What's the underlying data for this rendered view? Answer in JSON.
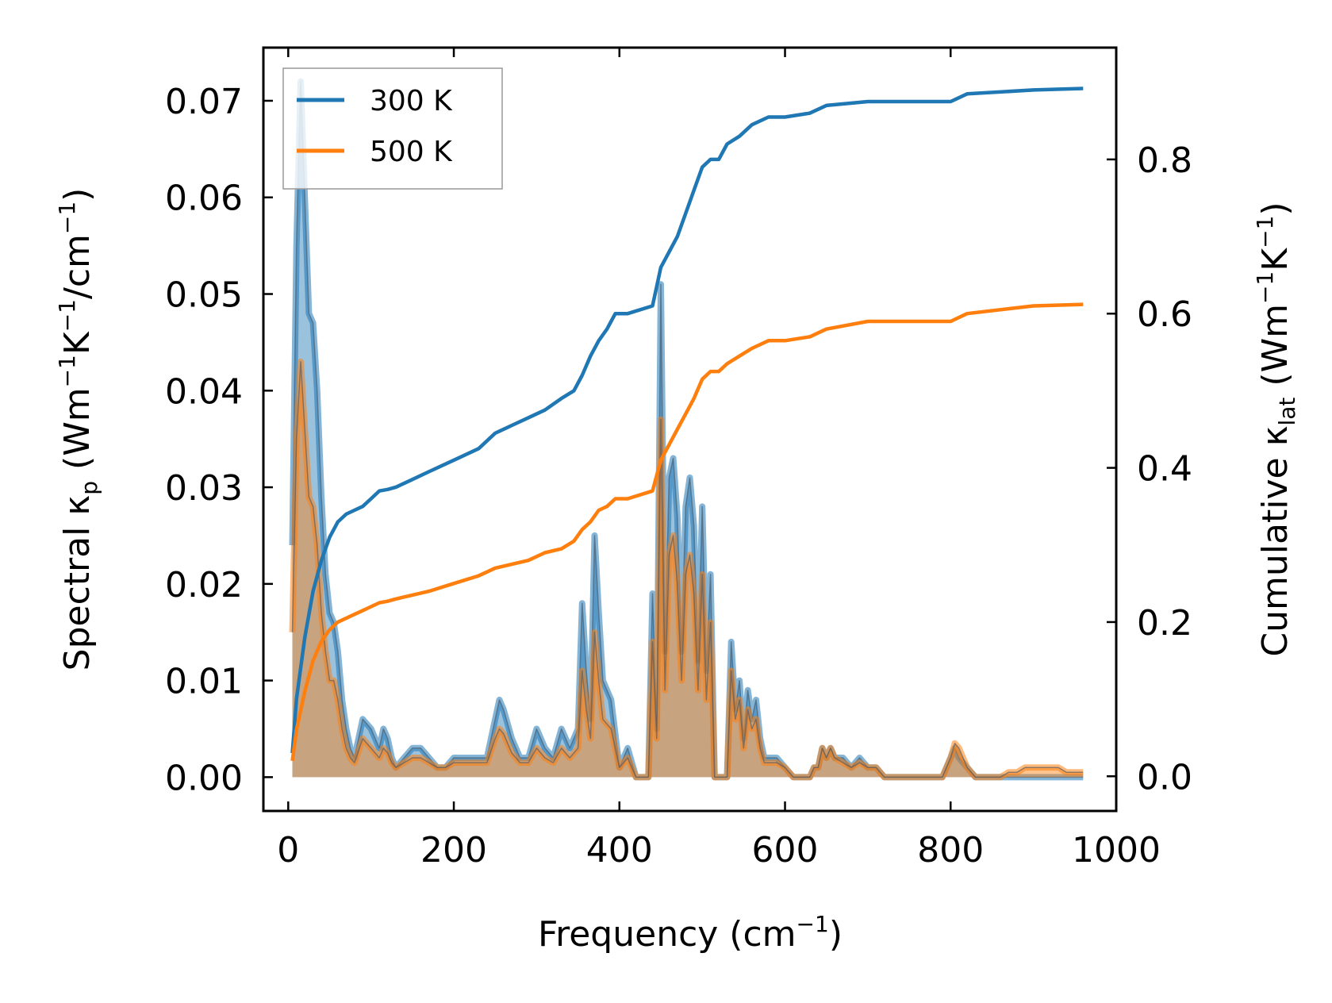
{
  "chart_data": {
    "type": "line",
    "x_label": "Frequency",
    "x_unit": "cm",
    "x_unit_exp": "−1",
    "x_range": [
      -30,
      1000
    ],
    "x_ticks": [
      "0",
      "200",
      "400",
      "600",
      "800",
      "1000"
    ],
    "left_axis": {
      "label": "Spectral",
      "symbol": "κ",
      "sub": "p",
      "unit_parts": [
        "(Wm",
        "−1",
        "K",
        "−1",
        "/cm",
        "−1",
        ")"
      ],
      "range": [
        -0.0035,
        0.0755
      ],
      "ticks": [
        "0.00",
        "0.01",
        "0.02",
        "0.03",
        "0.04",
        "0.05",
        "0.06",
        "0.07"
      ]
    },
    "right_axis": {
      "label": "Cumulative",
      "symbol": "κ",
      "sub": "lat",
      "unit_parts": [
        "(Wm",
        "−1",
        "K",
        "−1",
        ")"
      ],
      "range": [
        -0.045,
        0.945
      ],
      "ticks": [
        "0.0",
        "0.2",
        "0.4",
        "0.6",
        "0.8"
      ]
    },
    "legend": {
      "position": "top-left",
      "entries": [
        "300 K",
        "500 K"
      ]
    },
    "colors": {
      "300 K": "#1f77b4",
      "500 K": "#ff7f0e"
    },
    "series": [
      {
        "name": "300 K",
        "kind": "spectral",
        "x": [
          5,
          10,
          15,
          20,
          25,
          30,
          35,
          40,
          45,
          50,
          55,
          60,
          65,
          70,
          75,
          80,
          90,
          100,
          110,
          115,
          120,
          125,
          130,
          140,
          150,
          160,
          170,
          180,
          190,
          200,
          210,
          220,
          230,
          240,
          250,
          255,
          260,
          270,
          280,
          290,
          300,
          310,
          320,
          330,
          340,
          350,
          355,
          360,
          365,
          370,
          375,
          380,
          390,
          400,
          410,
          420,
          430,
          435,
          440,
          445,
          450,
          455,
          460,
          465,
          470,
          475,
          480,
          485,
          490,
          495,
          500,
          505,
          510,
          515,
          520,
          525,
          530,
          535,
          540,
          545,
          550,
          555,
          560,
          565,
          570,
          575,
          580,
          590,
          600,
          610,
          620,
          630,
          635,
          640,
          645,
          650,
          655,
          660,
          670,
          680,
          690,
          700,
          710,
          720,
          730,
          740,
          750,
          760,
          770,
          780,
          790,
          800,
          805,
          810,
          820,
          830,
          840,
          850,
          860,
          870,
          880,
          890,
          900,
          910,
          920,
          930,
          940,
          950,
          960
        ],
        "y": [
          0.024,
          0.055,
          0.072,
          0.06,
          0.048,
          0.047,
          0.04,
          0.029,
          0.021,
          0.017,
          0.016,
          0.013,
          0.008,
          0.005,
          0.003,
          0.002,
          0.006,
          0.005,
          0.003,
          0.005,
          0.004,
          0.002,
          0.001,
          0.002,
          0.003,
          0.003,
          0.002,
          0.001,
          0.001,
          0.002,
          0.002,
          0.002,
          0.002,
          0.002,
          0.006,
          0.008,
          0.007,
          0.004,
          0.002,
          0.002,
          0.005,
          0.003,
          0.002,
          0.005,
          0.003,
          0.005,
          0.018,
          0.011,
          0.006,
          0.025,
          0.017,
          0.01,
          0.008,
          0.001,
          0.003,
          0.0,
          0.0,
          0.0,
          0.019,
          0.005,
          0.051,
          0.013,
          0.031,
          0.033,
          0.027,
          0.013,
          0.028,
          0.031,
          0.026,
          0.012,
          0.028,
          0.011,
          0.021,
          0.0,
          0.0,
          0.0,
          0.0,
          0.014,
          0.007,
          0.01,
          0.004,
          0.009,
          0.006,
          0.008,
          0.004,
          0.002,
          0.002,
          0.002,
          0.001,
          0.0,
          0.0,
          0.0,
          0.001,
          0.001,
          0.003,
          0.002,
          0.003,
          0.002,
          0.002,
          0.001,
          0.002,
          0.001,
          0.001,
          0.0,
          0.0,
          0.0,
          0.0,
          0.0,
          0.0,
          0.0,
          0.0,
          0.002,
          0.003,
          0.002,
          0.001,
          0.0,
          0.0,
          0.0,
          0.0,
          0.0,
          0.0,
          0.0,
          0.0,
          0.0,
          0.0,
          0.0,
          0.0,
          0.0,
          0.0
        ]
      },
      {
        "name": "500 K",
        "kind": "spectral",
        "x": [
          5,
          10,
          15,
          20,
          25,
          30,
          35,
          40,
          45,
          50,
          55,
          60,
          65,
          70,
          75,
          80,
          90,
          100,
          110,
          115,
          120,
          125,
          130,
          140,
          150,
          160,
          170,
          180,
          190,
          200,
          210,
          220,
          230,
          240,
          250,
          255,
          260,
          270,
          280,
          290,
          300,
          310,
          320,
          330,
          340,
          350,
          355,
          360,
          365,
          370,
          375,
          380,
          390,
          400,
          410,
          420,
          430,
          435,
          440,
          445,
          450,
          455,
          460,
          465,
          470,
          475,
          480,
          485,
          490,
          495,
          500,
          505,
          510,
          515,
          520,
          525,
          530,
          535,
          540,
          545,
          550,
          555,
          560,
          565,
          570,
          575,
          580,
          590,
          600,
          610,
          620,
          630,
          635,
          640,
          645,
          650,
          655,
          660,
          670,
          680,
          690,
          700,
          710,
          720,
          730,
          740,
          750,
          760,
          770,
          780,
          790,
          800,
          805,
          810,
          820,
          830,
          840,
          850,
          860,
          870,
          880,
          890,
          900,
          910,
          920,
          930,
          940,
          950,
          960
        ],
        "y": [
          0.015,
          0.035,
          0.043,
          0.036,
          0.029,
          0.028,
          0.024,
          0.017,
          0.013,
          0.01,
          0.01,
          0.008,
          0.005,
          0.003,
          0.002,
          0.0015,
          0.004,
          0.003,
          0.002,
          0.003,
          0.0025,
          0.0015,
          0.001,
          0.0015,
          0.002,
          0.002,
          0.0015,
          0.001,
          0.001,
          0.0015,
          0.0015,
          0.0015,
          0.0015,
          0.0015,
          0.004,
          0.005,
          0.0045,
          0.0025,
          0.0015,
          0.0015,
          0.003,
          0.002,
          0.0015,
          0.003,
          0.002,
          0.003,
          0.011,
          0.007,
          0.004,
          0.015,
          0.01,
          0.006,
          0.005,
          0.001,
          0.002,
          0.0,
          0.0,
          0.0,
          0.014,
          0.004,
          0.037,
          0.009,
          0.023,
          0.025,
          0.02,
          0.01,
          0.021,
          0.023,
          0.019,
          0.009,
          0.021,
          0.008,
          0.016,
          0.0,
          0.0,
          0.0,
          0.0,
          0.011,
          0.006,
          0.008,
          0.003,
          0.007,
          0.005,
          0.006,
          0.003,
          0.0015,
          0.0015,
          0.0015,
          0.001,
          0.0,
          0.0,
          0.0,
          0.001,
          0.001,
          0.003,
          0.002,
          0.003,
          0.002,
          0.0015,
          0.001,
          0.0015,
          0.001,
          0.001,
          0.0,
          0.0,
          0.0,
          0.0,
          0.0,
          0.0,
          0.0,
          0.0,
          0.002,
          0.0035,
          0.003,
          0.001,
          0.0,
          0.0,
          0.0,
          0.0,
          0.0005,
          0.0005,
          0.001,
          0.001,
          0.001,
          0.001,
          0.001,
          0.0005,
          0.0005,
          0.0005
        ]
      },
      {
        "name": "300 K",
        "kind": "cumulative",
        "x": [
          5,
          10,
          20,
          30,
          40,
          50,
          60,
          70,
          80,
          90,
          100,
          110,
          120,
          130,
          150,
          170,
          200,
          230,
          250,
          270,
          290,
          310,
          330,
          345,
          355,
          365,
          375,
          385,
          395,
          410,
          440,
          450,
          460,
          470,
          480,
          490,
          500,
          510,
          520,
          530,
          545,
          560,
          580,
          600,
          630,
          650,
          700,
          750,
          800,
          820,
          900,
          960
        ],
        "y": [
          0.03,
          0.1,
          0.18,
          0.24,
          0.28,
          0.31,
          0.33,
          0.34,
          0.345,
          0.35,
          0.36,
          0.37,
          0.372,
          0.375,
          0.385,
          0.395,
          0.41,
          0.425,
          0.445,
          0.455,
          0.465,
          0.475,
          0.49,
          0.5,
          0.52,
          0.545,
          0.565,
          0.58,
          0.6,
          0.6,
          0.61,
          0.66,
          0.68,
          0.7,
          0.73,
          0.76,
          0.79,
          0.8,
          0.8,
          0.82,
          0.83,
          0.845,
          0.855,
          0.855,
          0.86,
          0.87,
          0.875,
          0.875,
          0.875,
          0.885,
          0.89,
          0.892
        ]
      },
      {
        "name": "500 K",
        "kind": "cumulative",
        "x": [
          5,
          10,
          20,
          30,
          40,
          50,
          60,
          70,
          80,
          90,
          100,
          110,
          120,
          130,
          150,
          170,
          200,
          230,
          250,
          270,
          290,
          310,
          330,
          345,
          355,
          365,
          375,
          385,
          395,
          410,
          440,
          450,
          460,
          470,
          480,
          490,
          500,
          510,
          520,
          530,
          545,
          560,
          580,
          600,
          630,
          650,
          700,
          750,
          800,
          820,
          900,
          960
        ],
        "y": [
          0.02,
          0.06,
          0.11,
          0.15,
          0.175,
          0.19,
          0.2,
          0.205,
          0.21,
          0.215,
          0.22,
          0.225,
          0.227,
          0.23,
          0.235,
          0.24,
          0.25,
          0.26,
          0.27,
          0.275,
          0.28,
          0.29,
          0.295,
          0.305,
          0.32,
          0.33,
          0.345,
          0.35,
          0.36,
          0.36,
          0.37,
          0.41,
          0.43,
          0.45,
          0.47,
          0.49,
          0.515,
          0.525,
          0.525,
          0.535,
          0.545,
          0.555,
          0.565,
          0.565,
          0.57,
          0.58,
          0.59,
          0.59,
          0.59,
          0.6,
          0.61,
          0.612
        ]
      }
    ]
  }
}
